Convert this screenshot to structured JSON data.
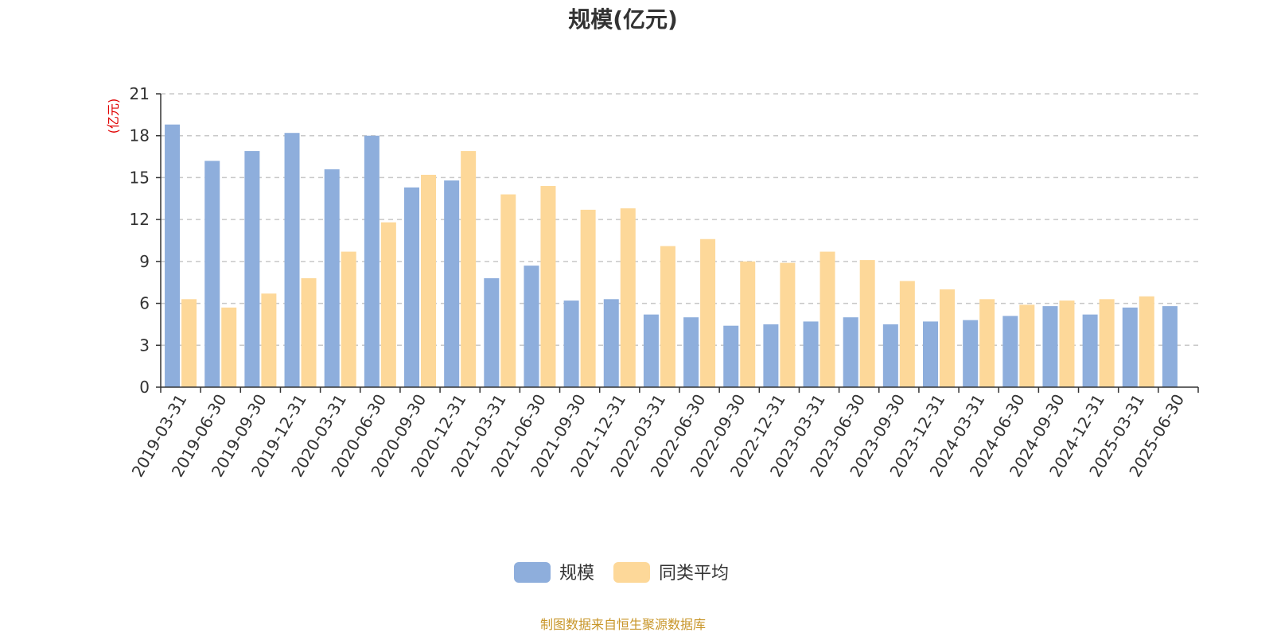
{
  "chart_data": {
    "type": "bar",
    "title": "规模(亿元)",
    "ylabel": "(亿元)",
    "ylim": [
      0,
      21
    ],
    "yticks": [
      0,
      3,
      6,
      9,
      12,
      15,
      18,
      21
    ],
    "grid": true,
    "legend_position": "bottom-center",
    "categories": [
      "2019-03-31",
      "2019-06-30",
      "2019-09-30",
      "2019-12-31",
      "2020-03-31",
      "2020-06-30",
      "2020-09-30",
      "2020-12-31",
      "2021-03-31",
      "2021-06-30",
      "2021-09-30",
      "2021-12-31",
      "2022-03-31",
      "2022-06-30",
      "2022-09-30",
      "2022-12-31",
      "2023-03-31",
      "2023-06-30",
      "2023-09-30",
      "2023-12-31",
      "2024-03-31",
      "2024-06-30",
      "2024-09-30",
      "2024-12-31",
      "2025-03-31",
      "2025-06-30"
    ],
    "series": [
      {
        "name": "规模",
        "color": "#8eaedc",
        "values": [
          18.8,
          16.2,
          16.9,
          18.2,
          15.6,
          18.0,
          14.3,
          14.8,
          7.8,
          8.7,
          6.2,
          6.3,
          5.2,
          5.0,
          4.4,
          4.5,
          4.7,
          5.0,
          4.5,
          4.7,
          4.8,
          5.1,
          5.8,
          5.2,
          5.7,
          5.8
        ]
      },
      {
        "name": "同类平均",
        "color": "#fdd899",
        "values": [
          6.3,
          5.7,
          6.7,
          7.8,
          9.7,
          11.8,
          15.2,
          16.9,
          13.8,
          14.4,
          12.7,
          12.8,
          10.1,
          10.6,
          9.0,
          8.9,
          9.7,
          9.1,
          7.6,
          7.0,
          6.3,
          5.9,
          6.2,
          6.3,
          6.5,
          null
        ]
      }
    ]
  },
  "footer": {
    "source": "制图数据来自恒生聚源数据库"
  }
}
